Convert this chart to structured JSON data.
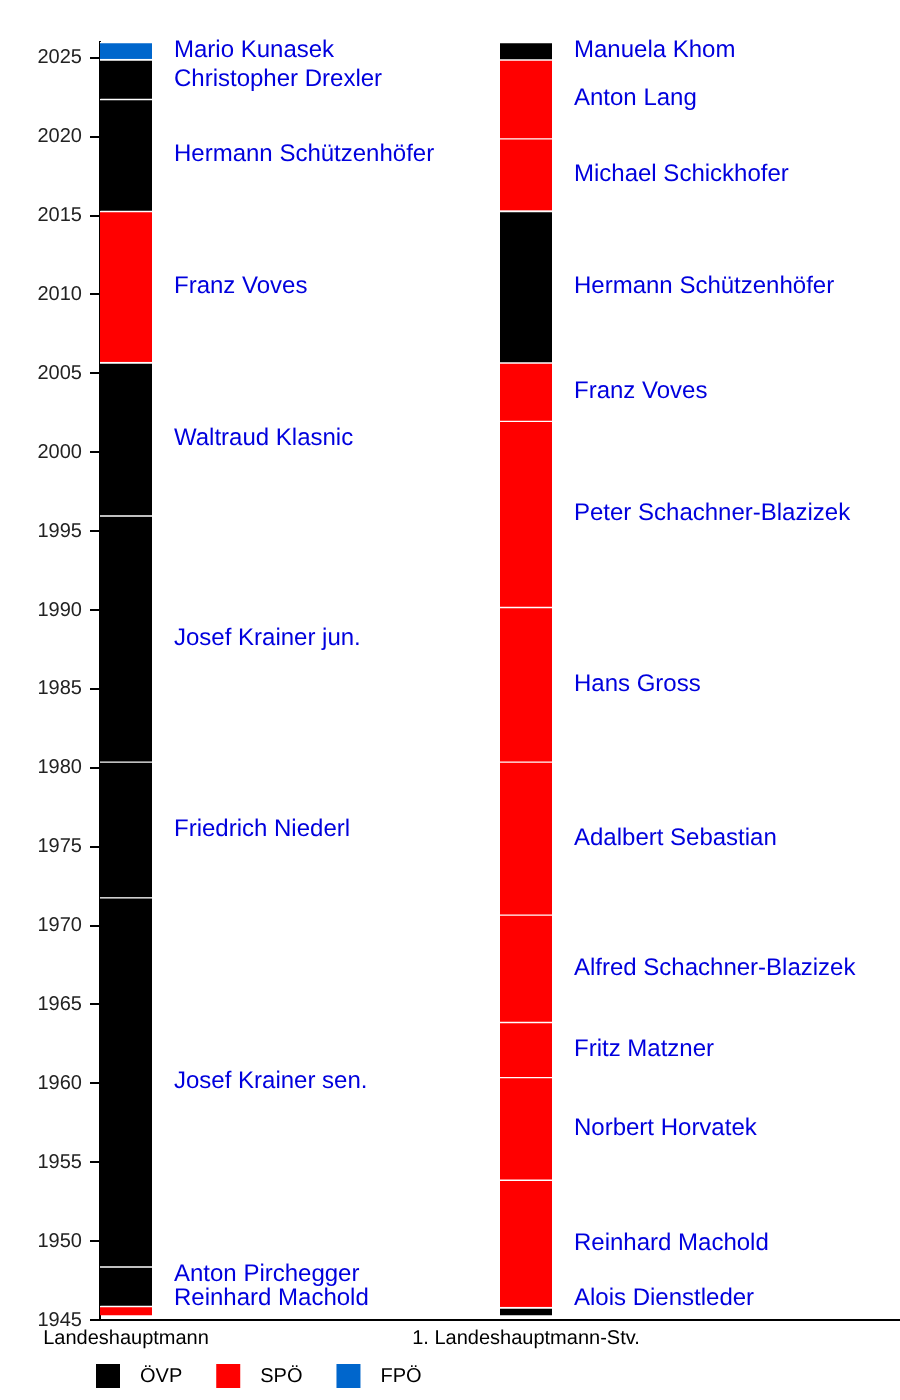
{
  "chart_data": {
    "type": "bar",
    "categories": [
      "Landeshauptmann",
      "1. Landeshauptmann-Stv."
    ],
    "series": [
      {
        "name": "ÖVP",
        "color": "#000000",
        "x": [
          "Landeshauptmann",
          "Landeshauptmann",
          "Landeshauptmann",
          "Landeshauptmann",
          "Landeshauptmann",
          "Landeshauptmann",
          "Landeshauptmann",
          "1. Landeshauptmann-Stv.",
          "1. Landeshauptmann-Stv.",
          "1. Landeshauptmann-Stv."
        ],
        "base": [
          1945.9,
          1948.4,
          1971.8,
          1980.4,
          1996.0,
          2015.3,
          2022.4,
          1945.3,
          2005.7,
          2024.9
        ],
        "values": [
          2.5,
          23.4,
          8.6,
          15.6,
          9.7,
          7.1,
          2.5,
          0.5,
          9.6,
          1.1
        ]
      },
      {
        "name": "SPÖ",
        "color": "#ff0000",
        "x": [
          "Landeshauptmann",
          "Landeshauptmann",
          "1. Landeshauptmann-Stv.",
          "1. Landeshauptmann-Stv.",
          "1. Landeshauptmann-Stv.",
          "1. Landeshauptmann-Stv.",
          "1. Landeshauptmann-Stv.",
          "1. Landeshauptmann-Stv.",
          "1. Landeshauptmann-Stv.",
          "1. Landeshauptmann-Stv.",
          "1. Landeshauptmann-Stv.",
          "1. Landeshauptmann-Stv."
        ],
        "base": [
          1945.3,
          2005.7,
          1945.8,
          1953.9,
          1960.4,
          1963.9,
          1970.7,
          1980.4,
          1990.2,
          2002.0,
          2015.3,
          2019.9
        ],
        "values": [
          0.6,
          9.6,
          8.1,
          6.5,
          3.5,
          6.8,
          9.7,
          9.8,
          11.8,
          3.7,
          4.6,
          5.0
        ]
      },
      {
        "name": "FPÖ",
        "color": "#0066cc",
        "x": [
          "Landeshauptmann"
        ],
        "base": [
          2024.9
        ],
        "values": [
          1.1
        ]
      }
    ],
    "annotations": [
      "Anton Pirchegger",
      "Josef Krainer sen.",
      "Friedrich Niederl",
      "Josef Krainer jun.",
      "Waltraud Klasnic",
      "Hermann Schützenhöfer",
      "Christopher Drexler",
      "Alois Dienstleder",
      "Hermann Schützenhöfer",
      "Manuela Khom",
      "Reinhard Machold",
      "Franz Voves",
      "Reinhard Machold",
      "Norbert Horvatek",
      "Fritz Matzner",
      "Alfred Schachner-Blazizek",
      "Adalbert Sebastian",
      "Hans Gross",
      "Peter Schachner-Blazizek",
      "Franz Voves",
      "Michael Schickhofer",
      "Anton Lang",
      "Mario Kunasek"
    ],
    "ylim": [
      1945,
      2026
    ],
    "yticks": [
      1945,
      1950,
      1955,
      1960,
      1965,
      1970,
      1975,
      1980,
      1985,
      1990,
      1995,
      2000,
      2005,
      2010,
      2015,
      2020,
      2025
    ],
    "grid": false,
    "legend": "bottom left"
  }
}
